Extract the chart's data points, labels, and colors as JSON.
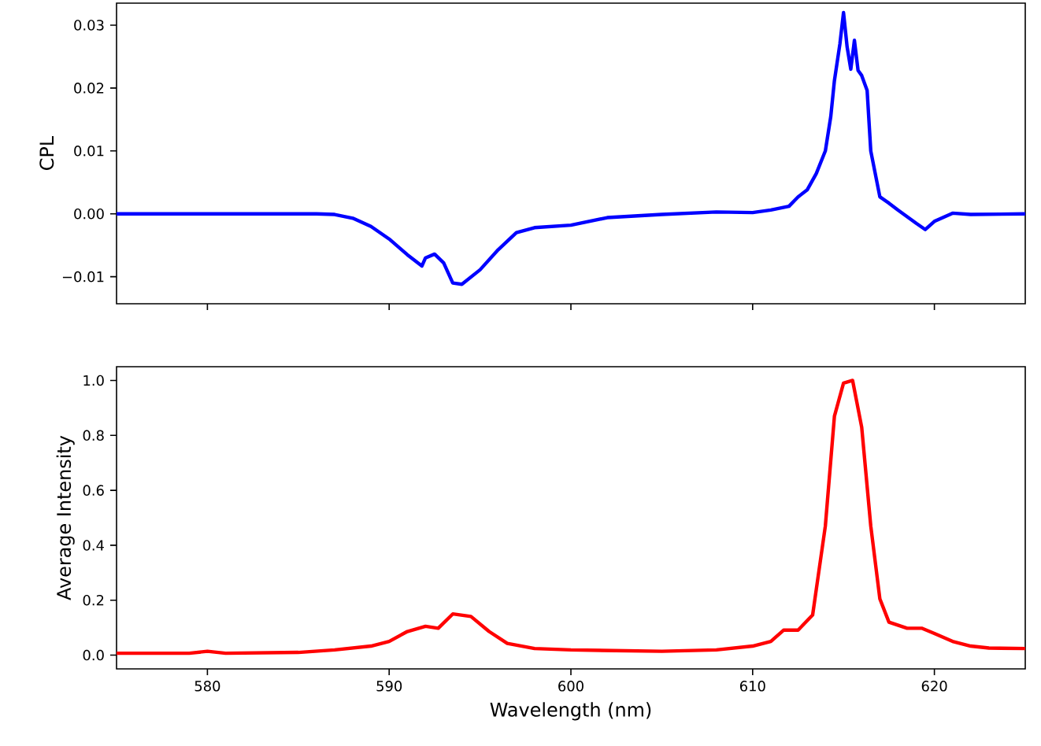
{
  "chart_data": [
    {
      "type": "line",
      "ylabel": "CPL",
      "xlim": [
        575,
        625
      ],
      "ylim": [
        -0.0143,
        0.0335
      ],
      "xticks": [
        580,
        590,
        600,
        610,
        620
      ],
      "yticks": [
        {
          "value": -0.01,
          "label": "−0.01"
        },
        {
          "value": 0,
          "label": "0.00"
        },
        0.01,
        0.02,
        0.03
      ],
      "tick_labels": "y",
      "series": [
        {
          "color": "#0000ff",
          "x": [
            575,
            585,
            586,
            587,
            588,
            589,
            590,
            591,
            591.8,
            592,
            592.5,
            593,
            593.5,
            594,
            595,
            596,
            597,
            598,
            600,
            602,
            605,
            608,
            610,
            611,
            612,
            612.5,
            613,
            613.5,
            614,
            614.3,
            614.5,
            614.8,
            615,
            615.2,
            615.4,
            615.6,
            615.8,
            616,
            616.3,
            616.5,
            617,
            617.5,
            618,
            619,
            619.5,
            620,
            621,
            622,
            625
          ],
          "values": [
            0,
            0,
            0,
            -0.0001,
            -0.0007,
            -0.002,
            -0.004,
            -0.0065,
            -0.0083,
            -0.007,
            -0.0064,
            -0.0078,
            -0.011,
            -0.0112,
            -0.0089,
            -0.0057,
            -0.003,
            -0.0022,
            -0.0018,
            -0.0006,
            -0.0001,
            0.0003,
            0.0002,
            0.0006,
            0.0012,
            0.0027,
            0.0038,
            0.0064,
            0.01,
            0.0155,
            0.0212,
            0.027,
            0.032,
            0.0265,
            0.023,
            0.0276,
            0.0228,
            0.022,
            0.0196,
            0.01,
            0.0027,
            0.0017,
            0.0006,
            -0.0015,
            -0.0025,
            -0.0012,
            0.0001,
            -0.0001,
            0
          ]
        }
      ]
    },
    {
      "type": "line",
      "xlabel": "Wavelength (nm)",
      "ylabel": "Average Intensity",
      "xlim": [
        575,
        625
      ],
      "ylim": [
        -0.05,
        1.05
      ],
      "xticks": [
        580,
        590,
        600,
        610,
        620
      ],
      "yticks": [
        {
          "value": 0,
          "label": "0.0"
        },
        0.2,
        0.4,
        0.6,
        0.8,
        {
          "value": 1,
          "label": "1.0"
        }
      ],
      "series": [
        {
          "color": "#ff0000",
          "x": [
            575,
            579,
            580,
            581,
            585,
            587,
            589,
            590,
            591,
            592,
            592.7,
            593.5,
            594.5,
            595.5,
            596.5,
            598,
            600,
            605,
            608,
            610,
            611,
            611.7,
            612.5,
            613.3,
            614,
            614.5,
            615,
            615.5,
            616,
            616.5,
            617,
            617.5,
            618.5,
            619.3,
            620,
            621,
            622,
            623,
            625
          ],
          "values": [
            0.007,
            0.007,
            0.014,
            0.007,
            0.01,
            0.019,
            0.033,
            0.05,
            0.086,
            0.105,
            0.098,
            0.15,
            0.141,
            0.086,
            0.043,
            0.024,
            0.019,
            0.014,
            0.019,
            0.033,
            0.05,
            0.091,
            0.091,
            0.146,
            0.47,
            0.87,
            0.99,
            1.0,
            0.83,
            0.47,
            0.205,
            0.12,
            0.098,
            0.098,
            0.079,
            0.05,
            0.033,
            0.026,
            0.024
          ]
        }
      ]
    }
  ]
}
